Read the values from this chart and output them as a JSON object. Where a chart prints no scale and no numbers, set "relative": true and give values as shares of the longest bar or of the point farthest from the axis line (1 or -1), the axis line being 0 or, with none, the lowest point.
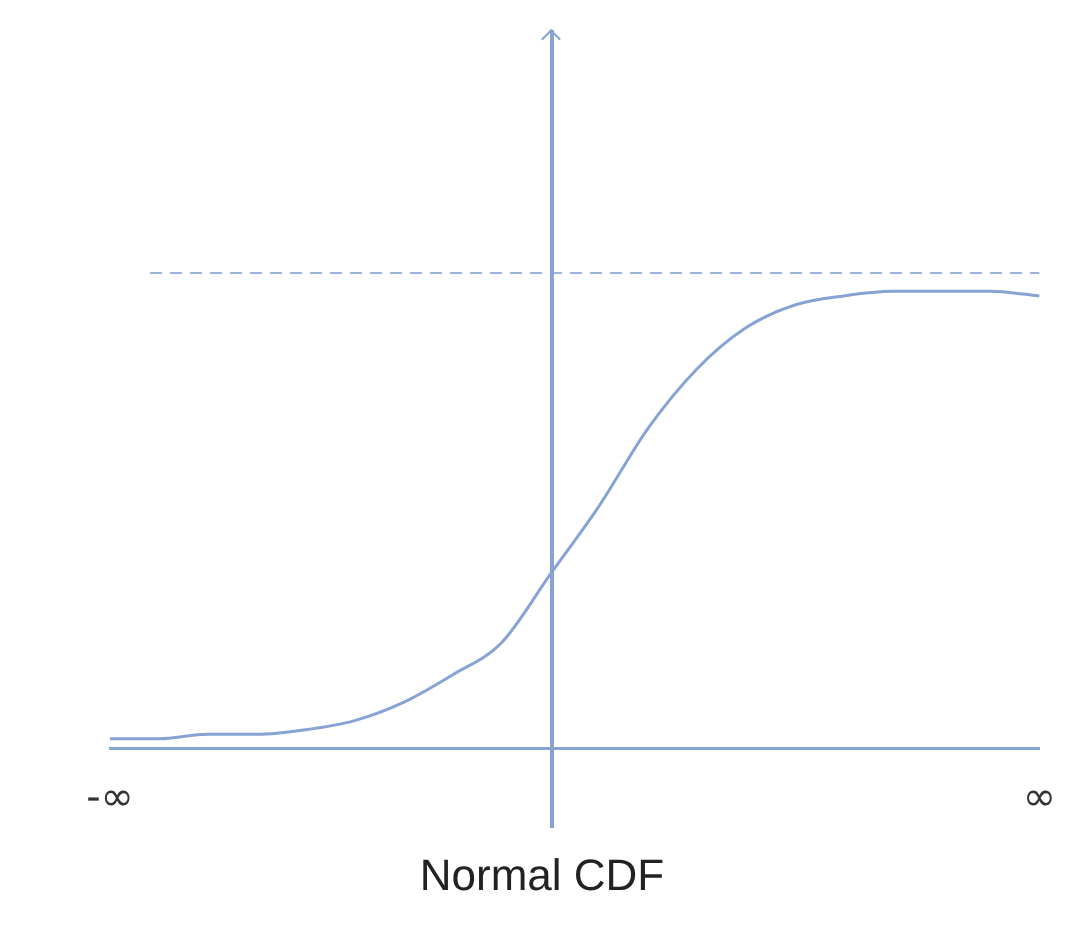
{
  "chart_data": {
    "type": "line",
    "title": "Normal CDF",
    "relative": true,
    "grid": false,
    "legend": false,
    "marker": "none",
    "line_style": "solid",
    "categories": [
      "-∞",
      null,
      null,
      null,
      null,
      null,
      null,
      null,
      null,
      null,
      null,
      null,
      null,
      null,
      null,
      null,
      null,
      null,
      null,
      "∞"
    ],
    "series": [
      {
        "color": "#86a3d4",
        "values": [
          0.02,
          0.02,
          0.03,
          0.03,
          0.04,
          0.06,
          0.1,
          0.16,
          0.23,
          0.38,
          0.53,
          0.7,
          0.83,
          0.92,
          0.97,
          0.99,
          1,
          1,
          1,
          0.99
        ]
      }
    ],
    "ref_lines": [
      {
        "axis": "y",
        "value": 1.04,
        "color": "#9bb3dc",
        "line_style": "dashed"
      }
    ]
  }
}
